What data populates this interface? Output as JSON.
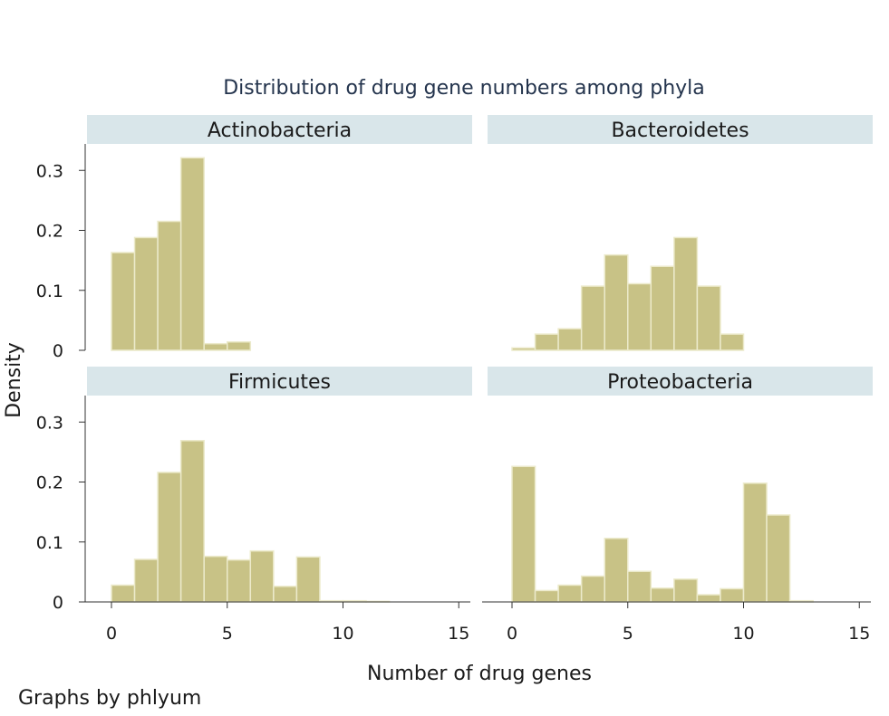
{
  "chart_data": {
    "type": "bar",
    "title": "Distribution of drug gene numbers among phyla",
    "xlabel": "Number of drug genes",
    "ylabel": "Density",
    "note": "Graphs by phlyum",
    "bin_width": 1,
    "xlim": [
      -0.5,
      15
    ],
    "ylim": [
      0,
      0.34
    ],
    "x_ticks": [
      0,
      5,
      10,
      15
    ],
    "x_tick_labels": [
      "0",
      "5",
      "10",
      "15"
    ],
    "y_ticks": [
      0,
      0.1,
      0.2,
      0.3
    ],
    "y_tick_labels": [
      "0",
      "0.1",
      "0.2",
      "0.3"
    ],
    "grid": false,
    "colors": {
      "bar_fill": "#c8c286",
      "bar_stroke": "#eceacb",
      "strip_fill": "#d9e6ea",
      "axis": "#333333"
    },
    "panels": [
      {
        "title": "Actinobacteria",
        "bins": [
          {
            "x": 0,
            "density": 0.163
          },
          {
            "x": 1,
            "density": 0.188
          },
          {
            "x": 2,
            "density": 0.215
          },
          {
            "x": 3,
            "density": 0.321
          },
          {
            "x": 4,
            "density": 0.011
          },
          {
            "x": 5,
            "density": 0.014
          }
        ]
      },
      {
        "title": "Bacteroidetes",
        "bins": [
          {
            "x": 0,
            "density": 0.004
          },
          {
            "x": 1,
            "density": 0.027
          },
          {
            "x": 2,
            "density": 0.036
          },
          {
            "x": 3,
            "density": 0.107
          },
          {
            "x": 4,
            "density": 0.159
          },
          {
            "x": 5,
            "density": 0.111
          },
          {
            "x": 6,
            "density": 0.14
          },
          {
            "x": 7,
            "density": 0.188
          },
          {
            "x": 8,
            "density": 0.107
          },
          {
            "x": 9,
            "density": 0.027
          }
        ]
      },
      {
        "title": "Firmicutes",
        "bins": [
          {
            "x": 0,
            "density": 0.028
          },
          {
            "x": 1,
            "density": 0.071
          },
          {
            "x": 2,
            "density": 0.216
          },
          {
            "x": 3,
            "density": 0.269
          },
          {
            "x": 4,
            "density": 0.076
          },
          {
            "x": 5,
            "density": 0.07
          },
          {
            "x": 6,
            "density": 0.085
          },
          {
            "x": 7,
            "density": 0.026
          },
          {
            "x": 8,
            "density": 0.075
          },
          {
            "x": 9,
            "density": 0.002
          },
          {
            "x": 10,
            "density": 0.002
          },
          {
            "x": 11,
            "density": 0.001
          }
        ]
      },
      {
        "title": "Proteobacteria",
        "bins": [
          {
            "x": 0,
            "density": 0.226
          },
          {
            "x": 1,
            "density": 0.019
          },
          {
            "x": 2,
            "density": 0.028
          },
          {
            "x": 3,
            "density": 0.043
          },
          {
            "x": 4,
            "density": 0.106
          },
          {
            "x": 5,
            "density": 0.051
          },
          {
            "x": 6,
            "density": 0.023
          },
          {
            "x": 7,
            "density": 0.038
          },
          {
            "x": 8,
            "density": 0.012
          },
          {
            "x": 9,
            "density": 0.022
          },
          {
            "x": 10,
            "density": 0.198
          },
          {
            "x": 11,
            "density": 0.145
          },
          {
            "x": 12,
            "density": 0.002
          }
        ]
      }
    ]
  }
}
